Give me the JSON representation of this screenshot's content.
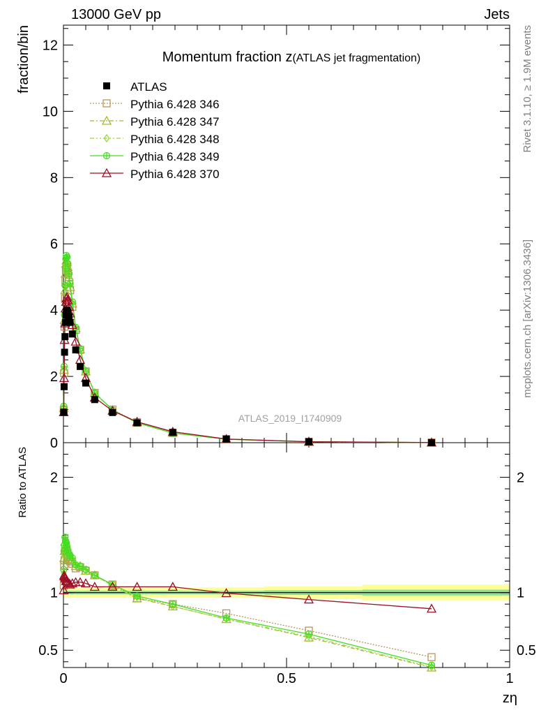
{
  "header": {
    "left": "13000 GeV pp",
    "right": "Jets"
  },
  "side_labels": {
    "rivet": "Rivet 3.1.10, ≥ 1.9M events",
    "mcplots": "mcplots.cern.ch [arXiv:1306.3436]"
  },
  "watermark": "ATLAS_2019_I1740909",
  "chart_data": [
    {
      "type": "line",
      "title": "Momentum fraction z",
      "title_suffix": "(ATLAS jet fragmentation)",
      "ylabel": "fraction/bin",
      "xlim": [
        0,
        1
      ],
      "ylim": [
        0,
        12.6
      ],
      "yticks": [
        0,
        2,
        4,
        6,
        8,
        10,
        12
      ],
      "legend_position": "top-left",
      "grid": false,
      "x": [
        0.0007,
        0.0015,
        0.0025,
        0.0035,
        0.0045,
        0.0055,
        0.0065,
        0.008,
        0.01,
        0.0125,
        0.015,
        0.02,
        0.0275,
        0.0375,
        0.05,
        0.07,
        0.11,
        0.165,
        0.245,
        0.365,
        0.55,
        0.825
      ],
      "reference": {
        "name": "ATLAS",
        "marker": "filled-square",
        "color": "#000000",
        "values": [
          0.92,
          1.69,
          2.73,
          3.2,
          3.63,
          3.85,
          3.95,
          4.0,
          3.95,
          3.8,
          3.63,
          3.28,
          2.8,
          2.3,
          1.8,
          1.3,
          0.91,
          0.6,
          0.31,
          0.11,
          0.03,
          0.004
        ]
      },
      "series": [
        {
          "name": "Pythia 6.428 346",
          "color": "#b8955a",
          "dash": "2,2",
          "marker": "open-square",
          "values": [
            0.98,
            2.1,
            3.5,
            4.35,
            4.9,
            5.2,
            5.3,
            5.25,
            5.1,
            4.85,
            4.6,
            4.1,
            3.4,
            2.8,
            2.15,
            1.5,
            1.0,
            0.62,
            0.3,
            0.11,
            0.028,
            0.004
          ]
        },
        {
          "name": "Pythia 6.428 347",
          "color": "#a3b830",
          "dash": "6,3,2,3",
          "marker": "open-triangle",
          "values": [
            1.05,
            2.2,
            3.7,
            4.6,
            5.1,
            5.4,
            5.5,
            5.45,
            5.3,
            5.0,
            4.7,
            4.2,
            3.45,
            2.82,
            2.15,
            1.5,
            0.98,
            0.6,
            0.29,
            0.105,
            0.026,
            0.0035
          ]
        },
        {
          "name": "Pythia 6.428 348",
          "color": "#98d840",
          "dash": "6,3,2,3,2,3",
          "marker": "open-diamond",
          "values": [
            1.08,
            2.25,
            3.8,
            4.7,
            5.2,
            5.5,
            5.6,
            5.55,
            5.35,
            5.05,
            4.75,
            4.22,
            3.46,
            2.82,
            2.15,
            1.5,
            0.98,
            0.6,
            0.29,
            0.104,
            0.026,
            0.0035
          ]
        },
        {
          "name": "Pythia 6.428 349",
          "color": "#44dd22",
          "dash": "",
          "marker": "open-cross-circle",
          "values": [
            1.1,
            2.3,
            3.85,
            4.75,
            5.25,
            5.55,
            5.65,
            5.6,
            5.4,
            5.1,
            4.8,
            4.25,
            3.48,
            2.84,
            2.16,
            1.5,
            0.99,
            0.6,
            0.29,
            0.106,
            0.027,
            0.0036
          ]
        },
        {
          "name": "Pythia 6.428 370",
          "color": "#9b0f25",
          "dash": "",
          "marker": "open-triangle",
          "values": [
            0.92,
            1.95,
            3.1,
            3.6,
            4.05,
            4.25,
            4.35,
            4.4,
            4.3,
            4.1,
            3.9,
            3.55,
            3.05,
            2.5,
            1.95,
            1.36,
            0.96,
            0.63,
            0.33,
            0.11,
            0.03,
            0.0045
          ]
        }
      ]
    },
    {
      "type": "line",
      "title": "",
      "ylabel": "Ratio to ATLAS",
      "xlabel": "zη",
      "xlim": [
        0,
        1
      ],
      "ylim": [
        0.35,
        2.3
      ],
      "yticks": [
        0.5,
        1,
        2
      ],
      "xticks": [
        0,
        0.5,
        1
      ],
      "band_green": [
        {
          "x0": 0,
          "x1": 0.45,
          "lo": 0.985,
          "hi": 1.015
        },
        {
          "x0": 0.45,
          "x1": 0.67,
          "lo": 0.98,
          "hi": 1.02
        },
        {
          "x0": 0.67,
          "x1": 1.0,
          "lo": 0.975,
          "hi": 1.025
        }
      ],
      "band_yellow": [
        {
          "x0": 0,
          "x1": 0.45,
          "lo": 0.955,
          "hi": 1.045
        },
        {
          "x0": 0.45,
          "x1": 0.67,
          "lo": 0.945,
          "hi": 1.055
        },
        {
          "x0": 0.67,
          "x1": 1.0,
          "lo": 0.93,
          "hi": 1.07
        }
      ],
      "series": [
        {
          "name": "Pythia 6.428 346",
          "values": [
            1.06,
            1.24,
            1.28,
            1.36,
            1.35,
            1.35,
            1.34,
            1.31,
            1.29,
            1.28,
            1.27,
            1.25,
            1.21,
            1.22,
            1.19,
            1.15,
            1.07,
            0.95,
            0.9,
            0.82,
            0.67,
            0.44
          ]
        },
        {
          "name": "Pythia 6.428 347",
          "values": [
            1.14,
            1.3,
            1.36,
            1.44,
            1.4,
            1.4,
            1.39,
            1.36,
            1.34,
            1.32,
            1.29,
            1.28,
            1.23,
            1.23,
            1.19,
            1.15,
            1.06,
            0.95,
            0.88,
            0.77,
            0.61,
            0.35
          ]
        },
        {
          "name": "Pythia 6.428 348",
          "values": [
            1.17,
            1.33,
            1.39,
            1.47,
            1.43,
            1.43,
            1.42,
            1.39,
            1.35,
            1.33,
            1.31,
            1.29,
            1.24,
            1.23,
            1.19,
            1.15,
            1.06,
            0.96,
            0.88,
            0.77,
            0.62,
            0.355
          ]
        },
        {
          "name": "Pythia 6.428 349",
          "values": [
            1.2,
            1.36,
            1.41,
            1.48,
            1.45,
            1.44,
            1.43,
            1.4,
            1.37,
            1.34,
            1.32,
            1.3,
            1.24,
            1.23,
            1.2,
            1.15,
            1.07,
            0.97,
            0.9,
            0.78,
            0.64,
            0.37
          ]
        },
        {
          "name": "Pythia 6.428 370",
          "values": [
            1.02,
            1.15,
            1.14,
            1.13,
            1.12,
            1.1,
            1.1,
            1.1,
            1.09,
            1.08,
            1.07,
            1.08,
            1.09,
            1.09,
            1.08,
            1.05,
            1.05,
            1.05,
            1.05,
            0.995,
            0.94,
            0.86
          ]
        }
      ]
    }
  ]
}
